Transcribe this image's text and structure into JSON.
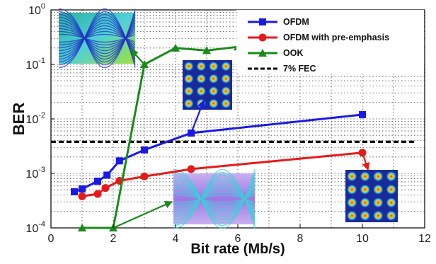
{
  "chart_data": {
    "type": "line",
    "xlabel": "Bit rate (Mb/s)",
    "ylabel": "BER",
    "x_scale": "linear",
    "y_scale": "log",
    "xlim": [
      0,
      12
    ],
    "ylim": [
      0.0001,
      1
    ],
    "x_ticks": [
      0,
      2,
      4,
      6,
      8,
      10,
      12
    ],
    "x_tick_labels": [
      "0",
      "2",
      "4",
      "6",
      "8",
      "10",
      "12"
    ],
    "y_ticks": [
      0.0001,
      0.001,
      0.01,
      0.1,
      1
    ],
    "y_tick_labels": [
      {
        "base": "10",
        "exp": "-4"
      },
      {
        "base": "10",
        "exp": "-3"
      },
      {
        "base": "10",
        "exp": "-2"
      },
      {
        "base": "10",
        "exp": "-1"
      },
      {
        "base": "10",
        "exp": "0"
      }
    ],
    "grid": true,
    "legend_position": "top-right",
    "series": [
      {
        "name": "OFDM",
        "color": "#1a1ae6",
        "marker": "square",
        "x": [
          0.75,
          1.0,
          1.5,
          1.8,
          2.2,
          3.0,
          4.5,
          10.0
        ],
        "y": [
          0.00046,
          0.00052,
          0.00072,
          0.00093,
          0.0017,
          0.0027,
          0.0055,
          0.012
        ]
      },
      {
        "name": "OFDM with pre-emphasis",
        "color": "#e61a1a",
        "marker": "circle",
        "x": [
          1.0,
          1.5,
          1.75,
          2.2,
          3.0,
          4.5,
          10.0
        ],
        "y": [
          0.00038,
          0.00042,
          0.00054,
          0.00073,
          0.00088,
          0.0012,
          0.0024
        ]
      },
      {
        "name": "OOK",
        "color": "#1a8a1a",
        "marker": "triangle",
        "x": [
          1.0,
          2.0,
          3.0,
          4.0,
          5.0,
          6.0
        ],
        "y": [
          0.0001,
          0.0001,
          0.1,
          0.2,
          0.18,
          0.21
        ]
      }
    ],
    "reference_lines": [
      {
        "name": "7% FEC",
        "y": 0.0038,
        "style": "dashed",
        "color": "#000000"
      }
    ],
    "inset_images": [
      {
        "name": "ook-eye-diagram",
        "points_to": {
          "series": "OOK",
          "x": 3.0,
          "y": 0.1
        }
      },
      {
        "name": "ofdm-constellation",
        "points_to": {
          "series": "OFDM",
          "x": 4.5,
          "y": 0.0055
        }
      },
      {
        "name": "ook-low-rate-eye-diagram",
        "points_to": {
          "series": "OOK",
          "x": 2.0,
          "y": 0.0001
        }
      },
      {
        "name": "pre-emphasis-constellation",
        "points_to": {
          "series": "OFDM with pre-emphasis",
          "x": 10.0,
          "y": 0.0024
        }
      }
    ]
  }
}
